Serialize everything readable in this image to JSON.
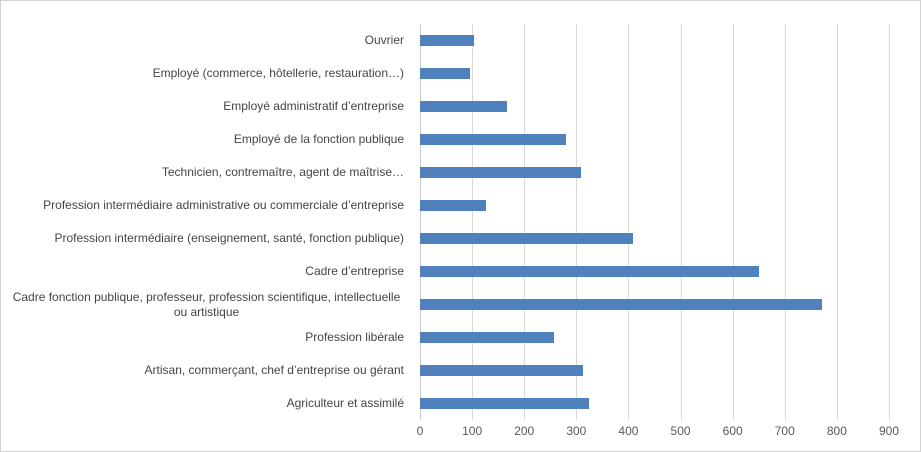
{
  "chart": {
    "background_color": "#ffffff",
    "border_color": "#d2d2d2"
  },
  "chart_data": {
    "type": "bar",
    "orientation": "horizontal",
    "title": "",
    "xlabel": "",
    "ylabel": "",
    "categories": [
      "Ouvrier",
      "Employé (commerce, hôtellerie, restauration…)",
      "Employé administratif d’entreprise",
      "Employé de la fonction publique",
      "Technicien, contremaître, agent de maîtrise…",
      "Profession intermédiaire administrative ou commerciale d’entreprise",
      "Profession intermédiaire (enseignement, santé,  fonction publique)",
      "Cadre d’entreprise",
      "Cadre fonction publique, professeur, profession scientifique, intellectuelle ou artistique",
      "Profession libérale",
      "Artisan, commerçant, chef d’entreprise ou gérant",
      "Agriculteur et assimilé"
    ],
    "values": [
      104,
      95,
      167,
      281,
      308,
      127,
      408,
      651,
      772,
      257,
      313,
      325
    ],
    "xlim": [
      0,
      900
    ],
    "x_ticks": [
      0,
      100,
      200,
      300,
      400,
      500,
      600,
      700,
      800,
      900
    ],
    "grid": true,
    "legend": false,
    "bar_color": "#4f81bd",
    "gridline_color": "#d9d9d9",
    "category_label_color": "#444444",
    "tick_label_color": "#595959"
  }
}
